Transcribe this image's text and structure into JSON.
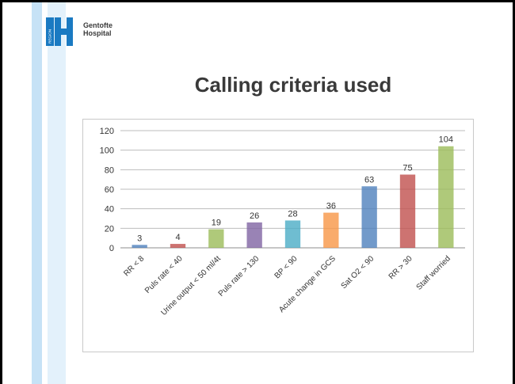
{
  "header": {
    "logo_line1": "Gentofte",
    "logo_line2": "Hospital",
    "logo_vertical": "REGION"
  },
  "title": "Calling criteria used",
  "chart_data": {
    "type": "bar",
    "categories": [
      "RR < 8",
      "Puls rate < 40",
      "Urine output < 50 ml/4t",
      "Puls rate > 130",
      "BP < 90",
      "Acute change in GCS",
      "Sat O2 < 90",
      "RR > 30",
      "Staff worried"
    ],
    "values": [
      3,
      4,
      19,
      26,
      28,
      36,
      63,
      75,
      104
    ],
    "colors": [
      "#4f81bd",
      "#c0504d",
      "#9bbb59",
      "#8064a2",
      "#4bacc6",
      "#f79646",
      "#4f81bd",
      "#c0504d",
      "#9bbb59"
    ],
    "ylim": [
      0,
      120
    ],
    "yticks": [
      0,
      20,
      40,
      60,
      80,
      100,
      120
    ],
    "grid": true,
    "data_labels": true,
    "title": "",
    "xlabel": "",
    "ylabel": ""
  }
}
